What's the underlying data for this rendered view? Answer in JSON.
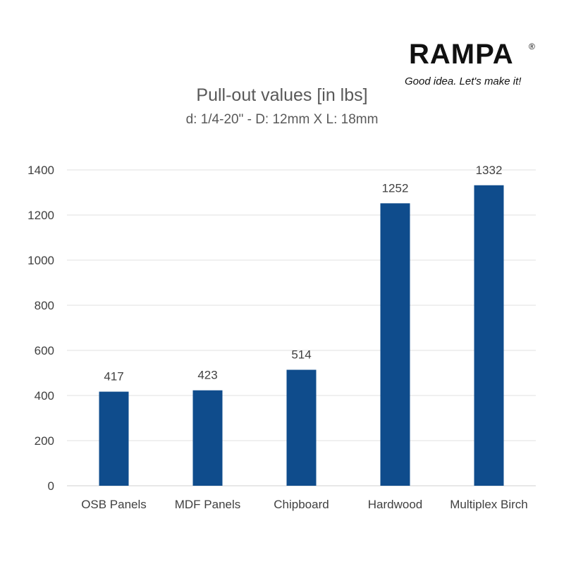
{
  "brand": {
    "name": "RAMPA",
    "registered_mark": "®",
    "tagline": "Good idea. Let's make it!"
  },
  "chart_data": {
    "type": "bar",
    "title": "Pull-out values [in lbs]",
    "subtitle": "d: 1/4-20\" - D: 12mm X L: 18mm",
    "categories": [
      "OSB Panels",
      "MDF Panels",
      "Chipboard",
      "Hardwood",
      "Multiplex Birch"
    ],
    "values": [
      417,
      423,
      514,
      1252,
      1332
    ],
    "data_labels": [
      "417",
      "423",
      "514",
      "1252",
      "1332"
    ],
    "ylim": [
      0,
      1400
    ],
    "yticks": [
      0,
      200,
      400,
      600,
      800,
      1000,
      1200,
      1400
    ],
    "xlabel": "",
    "ylabel": "",
    "grid": true,
    "legend": "none",
    "bar_color": "#0f4c8c",
    "grid_color": "#e2e2e2",
    "text_color": "#404040"
  }
}
